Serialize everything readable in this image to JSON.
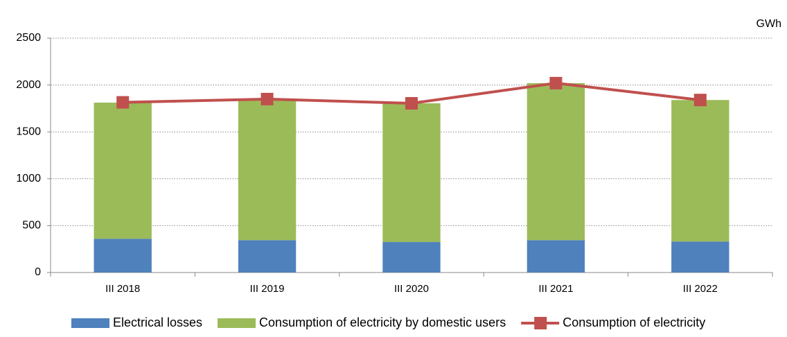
{
  "chart_data": {
    "type": "bar",
    "stacked": true,
    "unit_label": "GWh",
    "categories": [
      "III 2018",
      "III 2019",
      "III 2020",
      "III 2021",
      "III 2022"
    ],
    "series": [
      {
        "name": "Electrical losses",
        "type": "bar",
        "color": "#4f81bd",
        "values": [
          360,
          345,
          325,
          345,
          330
        ]
      },
      {
        "name": "Consumption of electricity by domestic users",
        "type": "bar",
        "color": "#9bbb59",
        "values": [
          1452,
          1504,
          1480,
          1675,
          1510
        ]
      },
      {
        "name": "Consumption of electricity",
        "type": "line",
        "color": "#c0504d",
        "values": [
          1815,
          1850,
          1805,
          2020,
          1840
        ]
      }
    ],
    "ylim": [
      0,
      2500
    ],
    "yticks": [
      0,
      500,
      1000,
      1500,
      2000,
      2500
    ],
    "grid": true,
    "legend": "bottom"
  }
}
